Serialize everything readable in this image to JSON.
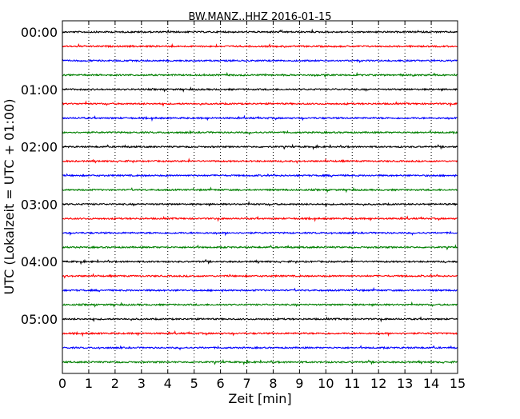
{
  "chart_data": {
    "type": "line",
    "title": "BW.MANZ..HHZ 2016-01-15",
    "xlabel": "Zeit  [min]",
    "ylabel": "UTC (Lokalzeit = UTC + 01:00)",
    "xlim": [
      0,
      15
    ],
    "x_ticks": [
      0,
      1,
      2,
      3,
      4,
      5,
      6,
      7,
      8,
      9,
      10,
      11,
      12,
      13,
      14,
      15
    ],
    "x_tick_labels": [
      "0",
      "1",
      "2",
      "3",
      "4",
      "5",
      "6",
      "7",
      "8",
      "9",
      "10",
      "11",
      "12",
      "13",
      "14",
      "15"
    ],
    "grid": "vertical-dotted",
    "trace_interval_minutes": 15,
    "trace_colors": [
      "#000000",
      "#ff0000",
      "#0000ff",
      "#008000"
    ],
    "traces": [
      {
        "start": "00:00"
      },
      {
        "start": "00:15"
      },
      {
        "start": "00:30"
      },
      {
        "start": "00:45"
      },
      {
        "start": "01:00"
      },
      {
        "start": "01:15"
      },
      {
        "start": "01:30"
      },
      {
        "start": "01:45"
      },
      {
        "start": "02:00"
      },
      {
        "start": "02:15"
      },
      {
        "start": "02:30"
      },
      {
        "start": "02:45"
      },
      {
        "start": "03:00"
      },
      {
        "start": "03:15"
      },
      {
        "start": "03:30"
      },
      {
        "start": "03:45"
      },
      {
        "start": "04:00"
      },
      {
        "start": "04:15"
      },
      {
        "start": "04:30"
      },
      {
        "start": "04:45"
      },
      {
        "start": "05:00"
      },
      {
        "start": "05:15"
      },
      {
        "start": "05:30"
      },
      {
        "start": "05:45"
      }
    ],
    "y_tick_labels": [
      "00:00",
      "01:00",
      "02:00",
      "03:00",
      "04:00",
      "05:00"
    ]
  }
}
